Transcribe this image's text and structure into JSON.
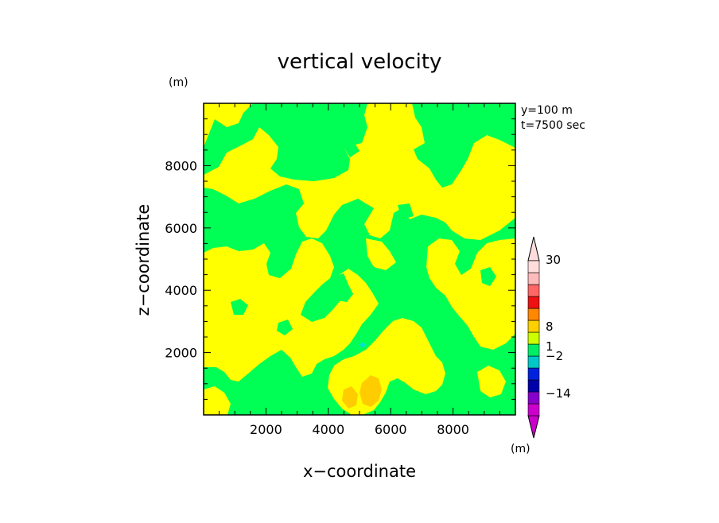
{
  "chart_data": {
    "type": "heatmap",
    "title": "vertical velocity",
    "xlabel": "x−coordinate",
    "ylabel": "z−coordinate",
    "x_unit": "(m)",
    "y_unit": "(m)",
    "info_lines": [
      "y=100  m",
      "t=7500  sec"
    ],
    "xlim": [
      0,
      10000
    ],
    "ylim": [
      0,
      10000
    ],
    "x_ticks": [
      2000,
      4000,
      6000,
      8000
    ],
    "y_ticks": [
      2000,
      4000,
      6000,
      8000
    ],
    "grid": false,
    "colorbar": {
      "position": "right",
      "unit": "(m)",
      "labels": [
        {
          "value": "30",
          "level": 30
        },
        {
          "value": "8",
          "level": 8
        },
        {
          "value": "1",
          "level": 1
        },
        {
          "value": "−2",
          "level": -2
        },
        {
          "value": "−14",
          "level": -14
        }
      ],
      "bands": [
        {
          "color": "#cc00cc"
        },
        {
          "color": "#8800cc"
        },
        {
          "color": "#0000aa"
        },
        {
          "color": "#0022dd"
        },
        {
          "color": "#00c8c8"
        },
        {
          "color": "#00ee66"
        },
        {
          "color": "#ccff00"
        },
        {
          "color": "#ffd000"
        },
        {
          "color": "#ff8800"
        },
        {
          "color": "#ee1111"
        },
        {
          "color": "#ff6666"
        },
        {
          "color": "#ffbbbb"
        },
        {
          "color": "#ffdddd"
        }
      ]
    },
    "field_colors": {
      "negative": "#00ff55",
      "positive": "#ffff00",
      "strong_positive": "#ffcc00",
      "strong_negative": "#00e0e0"
    }
  }
}
